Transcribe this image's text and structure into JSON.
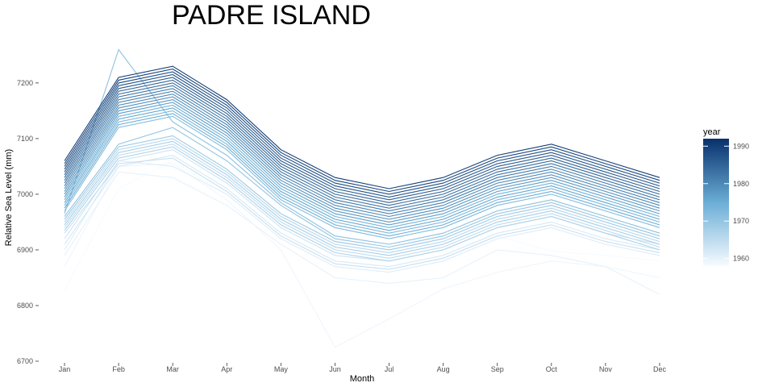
{
  "chart_data": {
    "type": "line",
    "title": "PADRE ISLAND",
    "xlabel": "Month",
    "ylabel": "Relative Sea Level (mm)",
    "categories": [
      "Jan",
      "Feb",
      "Mar",
      "Apr",
      "May",
      "Jun",
      "Jul",
      "Aug",
      "Sep",
      "Oct",
      "Nov",
      "Dec"
    ],
    "ylim": [
      6700,
      7265
    ],
    "yticks": [
      6700,
      6800,
      6900,
      7000,
      7100,
      7200
    ],
    "grid": false,
    "legend": {
      "title": "year",
      "position": "right",
      "range": [
        1958,
        1992
      ],
      "ticks": [
        1960,
        1970,
        1980,
        1990
      ],
      "low_color": "#f7fbff",
      "high_color": "#08306b"
    },
    "series": [
      {
        "year": 1958,
        "values": [
          6827,
          7010,
          7060,
          6998,
          6965,
          6901,
          6930,
          6900,
          6925,
          6898,
          6890,
          6880
        ]
      },
      {
        "year": 1959,
        "values": [
          6870,
          7050,
          7055,
          6990,
          6900,
          6725,
          6776,
          6830,
          6860,
          6880,
          6870,
          6850
        ]
      },
      {
        "year": 1960,
        "values": [
          6890,
          7040,
          7030,
          6980,
          6910,
          6850,
          6840,
          6850,
          6900,
          6890,
          6870,
          6820
        ]
      },
      {
        "year": 1961,
        "values": [
          6900,
          7060,
          7050,
          7000,
          6920,
          6870,
          6860,
          6880,
          6920,
          6940,
          6910,
          6890
        ]
      },
      {
        "year": 1962,
        "values": [
          6910,
          7050,
          7070,
          7010,
          6930,
          6880,
          6870,
          6890,
          6930,
          6950,
          6920,
          6900
        ]
      },
      {
        "year": 1963,
        "values": [
          6920,
          7060,
          7080,
          7020,
          6940,
          6890,
          6880,
          6900,
          6940,
          6960,
          6930,
          6910
        ]
      },
      {
        "year": 1964,
        "values": [
          6930,
          7055,
          7065,
          7005,
          6925,
          6875,
          6865,
          6885,
          6925,
          6945,
          6915,
          6895
        ]
      },
      {
        "year": 1965,
        "values": [
          6940,
          7070,
          7090,
          7030,
          6950,
          6900,
          6885,
          6905,
          6945,
          6965,
          6935,
          6905
        ]
      },
      {
        "year": 1966,
        "values": [
          6950,
          7080,
          7100,
          7040,
          6960,
          6910,
          6895,
          6915,
          6955,
          6975,
          6945,
          6915
        ]
      },
      {
        "year": 1967,
        "values": [
          6935,
          7065,
          7085,
          7025,
          6945,
          6895,
          6880,
          6900,
          6940,
          6960,
          6930,
          6900
        ]
      },
      {
        "year": 1968,
        "values": [
          6945,
          7075,
          7095,
          7035,
          6955,
          6905,
          6890,
          6910,
          6950,
          6970,
          6940,
          6910
        ]
      },
      {
        "year": 1969,
        "values": [
          6955,
          7085,
          7105,
          7045,
          6965,
          6915,
          6900,
          6920,
          6960,
          6980,
          6950,
          6920
        ]
      },
      {
        "year": 1970,
        "values": [
          6960,
          7090,
          7120,
          7060,
          6980,
          6920,
          6905,
          6925,
          6965,
          6985,
          6955,
          6925
        ]
      },
      {
        "year": 1971,
        "values": [
          6965,
          7260,
          7130,
          7070,
          6985,
          6925,
          6910,
          6930,
          6970,
          6990,
          6960,
          6930
        ]
      },
      {
        "year": 1972,
        "values": [
          6970,
          7120,
          7140,
          7080,
          6990,
          6940,
          6920,
          6940,
          6980,
          7000,
          6970,
          6940
        ]
      },
      {
        "year": 1973,
        "values": [
          6980,
          7130,
          7150,
          7090,
          7000,
          6950,
          6930,
          6950,
          6990,
          7010,
          6980,
          6950
        ]
      },
      {
        "year": 1974,
        "values": [
          6990,
          7140,
          7160,
          7100,
          7010,
          6960,
          6940,
          6960,
          7000,
          7020,
          6990,
          6960
        ]
      },
      {
        "year": 1975,
        "values": [
          6975,
          7125,
          7145,
          7085,
          6995,
          6945,
          6925,
          6945,
          6985,
          7005,
          6975,
          6945
        ]
      },
      {
        "year": 1976,
        "values": [
          6985,
          7135,
          7155,
          7095,
          7005,
          6955,
          6935,
          6955,
          6995,
          7015,
          6985,
          6955
        ]
      },
      {
        "year": 1977,
        "values": [
          6995,
          7145,
          7165,
          7105,
          7015,
          6965,
          6945,
          6965,
          7005,
          7025,
          6995,
          6965
        ]
      },
      {
        "year": 1978,
        "values": [
          7000,
          7150,
          7170,
          7110,
          7020,
          6970,
          6950,
          6970,
          7010,
          7030,
          7000,
          6970
        ]
      },
      {
        "year": 1979,
        "values": [
          7005,
          7155,
          7175,
          7115,
          7025,
          6975,
          6955,
          6975,
          7015,
          7035,
          7005,
          6975
        ]
      },
      {
        "year": 1980,
        "values": [
          7010,
          7160,
          7180,
          7120,
          7030,
          6980,
          6960,
          6980,
          7020,
          7040,
          7010,
          6980
        ]
      },
      {
        "year": 1981,
        "values": [
          7015,
          7165,
          7185,
          7125,
          7035,
          6985,
          6965,
          6985,
          7025,
          7045,
          7015,
          6985
        ]
      },
      {
        "year": 1982,
        "values": [
          7020,
          7170,
          7190,
          7130,
          7040,
          6990,
          6970,
          6990,
          7030,
          7050,
          7020,
          6990
        ]
      },
      {
        "year": 1983,
        "values": [
          7025,
          7175,
          7195,
          7135,
          7045,
          6995,
          6975,
          6995,
          7035,
          7055,
          7025,
          6995
        ]
      },
      {
        "year": 1984,
        "values": [
          7030,
          7180,
          7200,
          7140,
          7050,
          7000,
          6980,
          7000,
          7040,
          7060,
          7030,
          7000
        ]
      },
      {
        "year": 1985,
        "values": [
          7035,
          7185,
          7205,
          7145,
          7055,
          7005,
          6985,
          7005,
          7045,
          7065,
          7035,
          7005
        ]
      },
      {
        "year": 1986,
        "values": [
          7040,
          7190,
          7210,
          7150,
          7060,
          7010,
          6990,
          7010,
          7050,
          7070,
          7040,
          7010
        ]
      },
      {
        "year": 1987,
        "values": [
          7045,
          7195,
          7215,
          7155,
          7065,
          7015,
          6995,
          7015,
          7055,
          7075,
          7045,
          7015
        ]
      },
      {
        "year": 1988,
        "values": [
          7050,
          7200,
          7220,
          7160,
          7070,
          7020,
          7000,
          7020,
          7060,
          7080,
          7050,
          7020
        ]
      },
      {
        "year": 1989,
        "values": [
          7055,
          7205,
          7225,
          7165,
          7075,
          7025,
          7005,
          7025,
          7065,
          7085,
          7055,
          7025
        ]
      },
      {
        "year": 1990,
        "values": [
          7060,
          7210,
          7230,
          7170,
          7080,
          7030,
          7010,
          7030,
          7070,
          7090,
          7060,
          7030
        ]
      }
    ]
  }
}
